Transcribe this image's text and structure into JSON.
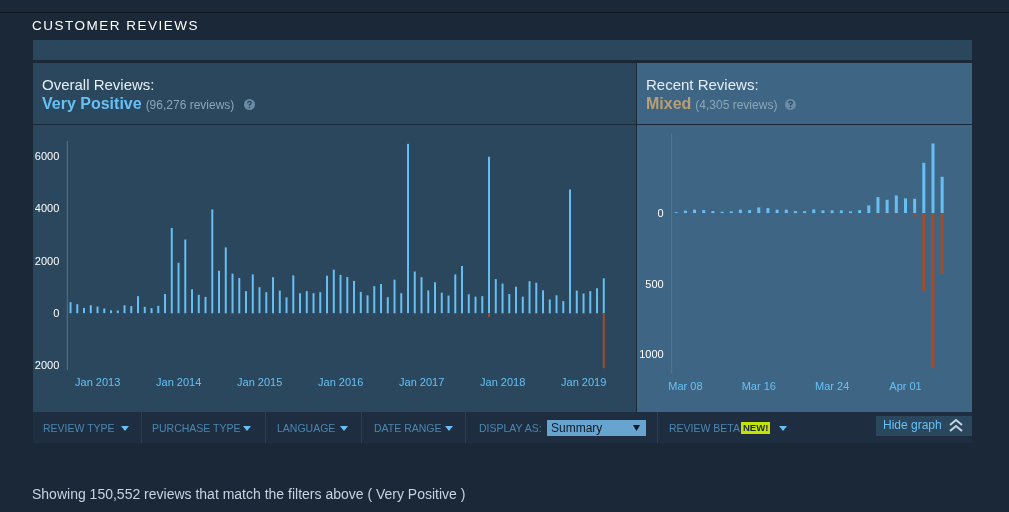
{
  "chart_data": [
    {
      "type": "bar",
      "title": "Overall Reviews:",
      "subtitle": "Very Positive",
      "annotations": [
        "(96,276 reviews)",
        "CUSTOMER REVIEWS",
        "REVIEW TYPE",
        "PURCHASE TYPE",
        "LANGUAGE",
        "DATE RANGE",
        "DISPLAY AS:",
        "Summary",
        "REVIEW BETA",
        "NEW!",
        "Hide graph",
        "Showing 150,552 reviews that match the filters above ( Very Positive )"
      ],
      "categories": [
        null,
        null,
        null,
        null,
        "Jan 2013",
        null,
        null,
        null,
        null,
        null,
        null,
        null,
        null,
        null,
        null,
        null,
        "Jan 2014",
        null,
        null,
        null,
        null,
        null,
        null,
        null,
        null,
        null,
        null,
        null,
        "Jan 2015",
        null,
        null,
        null,
        null,
        null,
        null,
        null,
        null,
        null,
        null,
        null,
        "Jan 2016",
        null,
        null,
        null,
        null,
        null,
        null,
        null,
        null,
        null,
        null,
        null,
        "Jan 2017",
        null,
        null,
        null,
        null,
        null,
        null,
        null,
        null,
        null,
        null,
        null,
        "Jan 2018",
        null,
        null,
        null,
        null,
        null,
        null,
        null,
        null,
        null,
        null,
        null,
        "Jan 2019",
        null,
        null,
        null
      ],
      "series": [
        {
          "color": "#66c0f4",
          "values": [
            420,
            340,
            200,
            300,
            250,
            180,
            110,
            100,
            300,
            270,
            650,
            240,
            190,
            280,
            730,
            3250,
            1920,
            2810,
            910,
            700,
            620,
            3960,
            1620,
            2510,
            1510,
            1340,
            840,
            1480,
            990,
            800,
            1370,
            860,
            600,
            1440,
            760,
            840,
            760,
            800,
            1430,
            1660,
            1460,
            1380,
            1230,
            810,
            680,
            1030,
            1110,
            610,
            1280,
            760,
            6460,
            1590,
            1370,
            870,
            1180,
            780,
            670,
            1480,
            1800,
            720,
            630,
            650,
            5970,
            1300,
            1130,
            730,
            1010,
            630,
            1220,
            1160,
            870,
            520,
            680,
            460,
            4720,
            860,
            750,
            840,
            950,
            1330
          ]
        },
        {
          "color": "#a34c25",
          "values": [
            0,
            0,
            0,
            0,
            0,
            0,
            0,
            0,
            0,
            0,
            0,
            0,
            0,
            0,
            0,
            -40,
            0,
            -40,
            0,
            0,
            0,
            -40,
            0,
            -40,
            -40,
            -40,
            0,
            -40,
            0,
            0,
            -40,
            0,
            0,
            -40,
            0,
            0,
            0,
            0,
            -40,
            0,
            -40,
            0,
            -40,
            0,
            0,
            0,
            0,
            -40,
            -40,
            0,
            0,
            -40,
            -40,
            0,
            -40,
            0,
            0,
            -40,
            -40,
            0,
            0,
            0,
            -150,
            -40,
            -40,
            -40,
            -40,
            0,
            -40,
            -40,
            -40,
            -40,
            0,
            0,
            -40,
            -40,
            -40,
            -40,
            -40,
            -2100
          ]
        }
      ],
      "stacked": true,
      "ylim": [
        -2170,
        6570
      ],
      "yticks": [
        {
          "value": -2000,
          "label": "2000"
        },
        0,
        2000,
        4000,
        6000
      ],
      "grid": false,
      "legend": false
    },
    {
      "type": "bar",
      "title": "Recent Reviews:",
      "subtitle": "Mixed",
      "annotations": [
        "(4,305 reviews)"
      ],
      "categories": [
        null,
        "Mar 08",
        null,
        null,
        null,
        null,
        null,
        null,
        null,
        "Mar 16",
        null,
        null,
        null,
        null,
        null,
        null,
        null,
        "Mar 24",
        null,
        null,
        null,
        null,
        null,
        null,
        null,
        "Apr 01",
        null,
        null,
        null,
        null
      ],
      "series": [
        {
          "color": "#66c0f4",
          "values": [
            7,
            17,
            24,
            21,
            14,
            9,
            12,
            24,
            21,
            40,
            35,
            24,
            24,
            14,
            14,
            26,
            19,
            19,
            19,
            12,
            21,
            54,
            113,
            94,
            125,
            104,
            101,
            356,
            493,
            257
          ]
        },
        {
          "color": "#a34c25",
          "values": [
            0,
            0,
            0,
            0,
            0,
            0,
            0,
            0,
            0,
            0,
            0,
            0,
            0,
            0,
            0,
            0,
            0,
            0,
            0,
            0,
            0,
            0,
            -10,
            -10,
            -10,
            0,
            -26,
            -557,
            -1099,
            -427
          ]
        }
      ],
      "stacked": true,
      "ylim": [
        -1140,
        560
      ],
      "yticks": [
        {
          "value": -1000,
          "label": "1000"
        },
        {
          "value": -500,
          "label": "500"
        },
        0
      ],
      "grid": false,
      "legend": false
    }
  ]
}
